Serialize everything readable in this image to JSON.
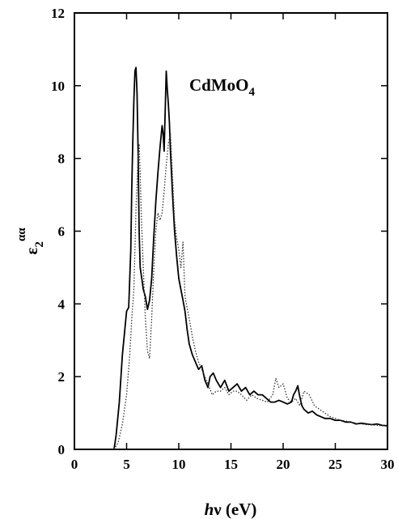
{
  "chart_data": {
    "type": "line",
    "title": "",
    "xlabel": {
      "italic": "h",
      "rest": "ν (eV)"
    },
    "ylabel": {
      "base": "ε",
      "sub": "2",
      "sup": "αα"
    },
    "annotation": {
      "main": "CdMoO",
      "sub": "4"
    },
    "xlim": [
      0,
      30
    ],
    "ylim": [
      0,
      12
    ],
    "xticks": [
      0,
      5,
      10,
      15,
      20,
      25,
      30
    ],
    "yticks": [
      0,
      2,
      4,
      6,
      8,
      10,
      12
    ],
    "xtick_labels": [
      "0",
      "5",
      "10",
      "15",
      "20",
      "25",
      "30"
    ],
    "ytick_labels": [
      "0",
      "2",
      "4",
      "6",
      "8",
      "10",
      "12"
    ],
    "grid": false,
    "series": [
      {
        "style": "solid",
        "color": "#000000",
        "x": [
          3.8,
          4.0,
          4.3,
          4.6,
          5.0,
          5.2,
          5.4,
          5.5,
          5.6,
          5.7,
          5.8,
          5.9,
          6.0,
          6.1,
          6.2,
          6.3,
          6.4,
          6.5,
          6.6,
          6.8,
          7.0,
          7.2,
          7.4,
          7.6,
          7.8,
          8.0,
          8.2,
          8.4,
          8.5,
          8.6,
          8.7,
          8.8,
          8.9,
          9.0,
          9.1,
          9.2,
          9.4,
          9.6,
          9.8,
          10.0,
          10.2,
          10.4,
          10.6,
          10.8,
          11.0,
          11.3,
          11.6,
          11.9,
          12.2,
          12.5,
          12.8,
          13.0,
          13.3,
          13.6,
          14.0,
          14.4,
          14.8,
          15.2,
          15.6,
          16.0,
          16.4,
          16.8,
          17.2,
          17.6,
          18.0,
          18.4,
          18.8,
          19.2,
          19.6,
          20.0,
          20.4,
          20.8,
          21.0,
          21.2,
          21.4,
          21.6,
          21.8,
          22.0,
          22.4,
          22.8,
          23.2,
          23.6,
          24.0,
          24.5,
          25.0,
          25.5,
          26.0,
          26.5,
          27.0,
          27.5,
          28.0,
          28.5,
          29.0,
          29.5,
          30.0
        ],
        "y": [
          0.0,
          0.4,
          1.3,
          2.6,
          3.8,
          3.9,
          5.5,
          7.2,
          8.5,
          9.6,
          10.4,
          10.5,
          9.8,
          8.2,
          6.0,
          5.0,
          4.8,
          4.6,
          4.4,
          4.2,
          3.85,
          4.1,
          4.7,
          5.8,
          6.8,
          7.6,
          8.3,
          8.9,
          8.7,
          8.2,
          9.3,
          10.4,
          9.9,
          9.5,
          9.0,
          8.2,
          7.0,
          6.0,
          5.3,
          4.7,
          4.4,
          4.1,
          3.8,
          3.3,
          2.9,
          2.6,
          2.4,
          2.2,
          2.3,
          1.9,
          1.7,
          2.0,
          2.1,
          1.9,
          1.7,
          1.9,
          1.6,
          1.7,
          1.8,
          1.6,
          1.7,
          1.5,
          1.6,
          1.5,
          1.5,
          1.4,
          1.3,
          1.3,
          1.35,
          1.3,
          1.25,
          1.3,
          1.5,
          1.6,
          1.75,
          1.45,
          1.2,
          1.1,
          1.0,
          1.05,
          0.95,
          0.9,
          0.85,
          0.85,
          0.8,
          0.8,
          0.75,
          0.75,
          0.7,
          0.72,
          0.7,
          0.68,
          0.7,
          0.66,
          0.65
        ]
      },
      {
        "style": "dotted",
        "color": "#333333",
        "x": [
          3.8,
          4.2,
          4.6,
          5.0,
          5.3,
          5.5,
          5.7,
          5.8,
          5.9,
          6.0,
          6.1,
          6.2,
          6.3,
          6.4,
          6.6,
          6.8,
          7.0,
          7.2,
          7.4,
          7.6,
          7.8,
          8.0,
          8.2,
          8.4,
          8.6,
          8.8,
          9.0,
          9.2,
          9.4,
          9.6,
          9.8,
          10.0,
          10.2,
          10.4,
          10.6,
          10.8,
          11.0,
          11.3,
          11.6,
          11.9,
          12.2,
          12.5,
          12.8,
          13.2,
          13.6,
          14.0,
          14.4,
          14.8,
          15.2,
          15.6,
          16.0,
          16.5,
          17.0,
          17.5,
          18.0,
          18.5,
          19.0,
          19.3,
          19.6,
          20.0,
          20.4,
          20.8,
          21.2,
          21.6,
          22.0,
          22.5,
          23.0,
          23.5,
          24.0,
          24.5,
          25.0,
          25.5,
          26.0,
          26.5,
          27.0,
          27.5,
          28.0,
          28.5,
          29.0,
          29.5,
          30.0
        ],
        "y": [
          0.0,
          0.2,
          0.7,
          1.5,
          2.6,
          3.6,
          4.4,
          5.5,
          6.6,
          7.3,
          8.1,
          8.4,
          7.6,
          6.5,
          5.0,
          3.6,
          2.7,
          2.5,
          3.6,
          4.9,
          6.0,
          6.5,
          6.3,
          6.5,
          7.1,
          7.8,
          8.4,
          8.7,
          7.5,
          6.3,
          5.8,
          5.5,
          5.0,
          5.7,
          4.2,
          3.9,
          3.6,
          3.1,
          2.7,
          2.4,
          2.2,
          2.0,
          1.8,
          1.5,
          1.6,
          1.6,
          1.7,
          1.5,
          1.6,
          1.6,
          1.5,
          1.35,
          1.5,
          1.4,
          1.35,
          1.3,
          1.5,
          1.95,
          1.7,
          1.8,
          1.4,
          1.3,
          1.4,
          1.2,
          1.6,
          1.5,
          1.2,
          1.1,
          1.0,
          0.9,
          0.85,
          0.8,
          0.78,
          0.75,
          0.72,
          0.7,
          0.68,
          0.68,
          0.66,
          0.65,
          0.64
        ]
      }
    ]
  }
}
